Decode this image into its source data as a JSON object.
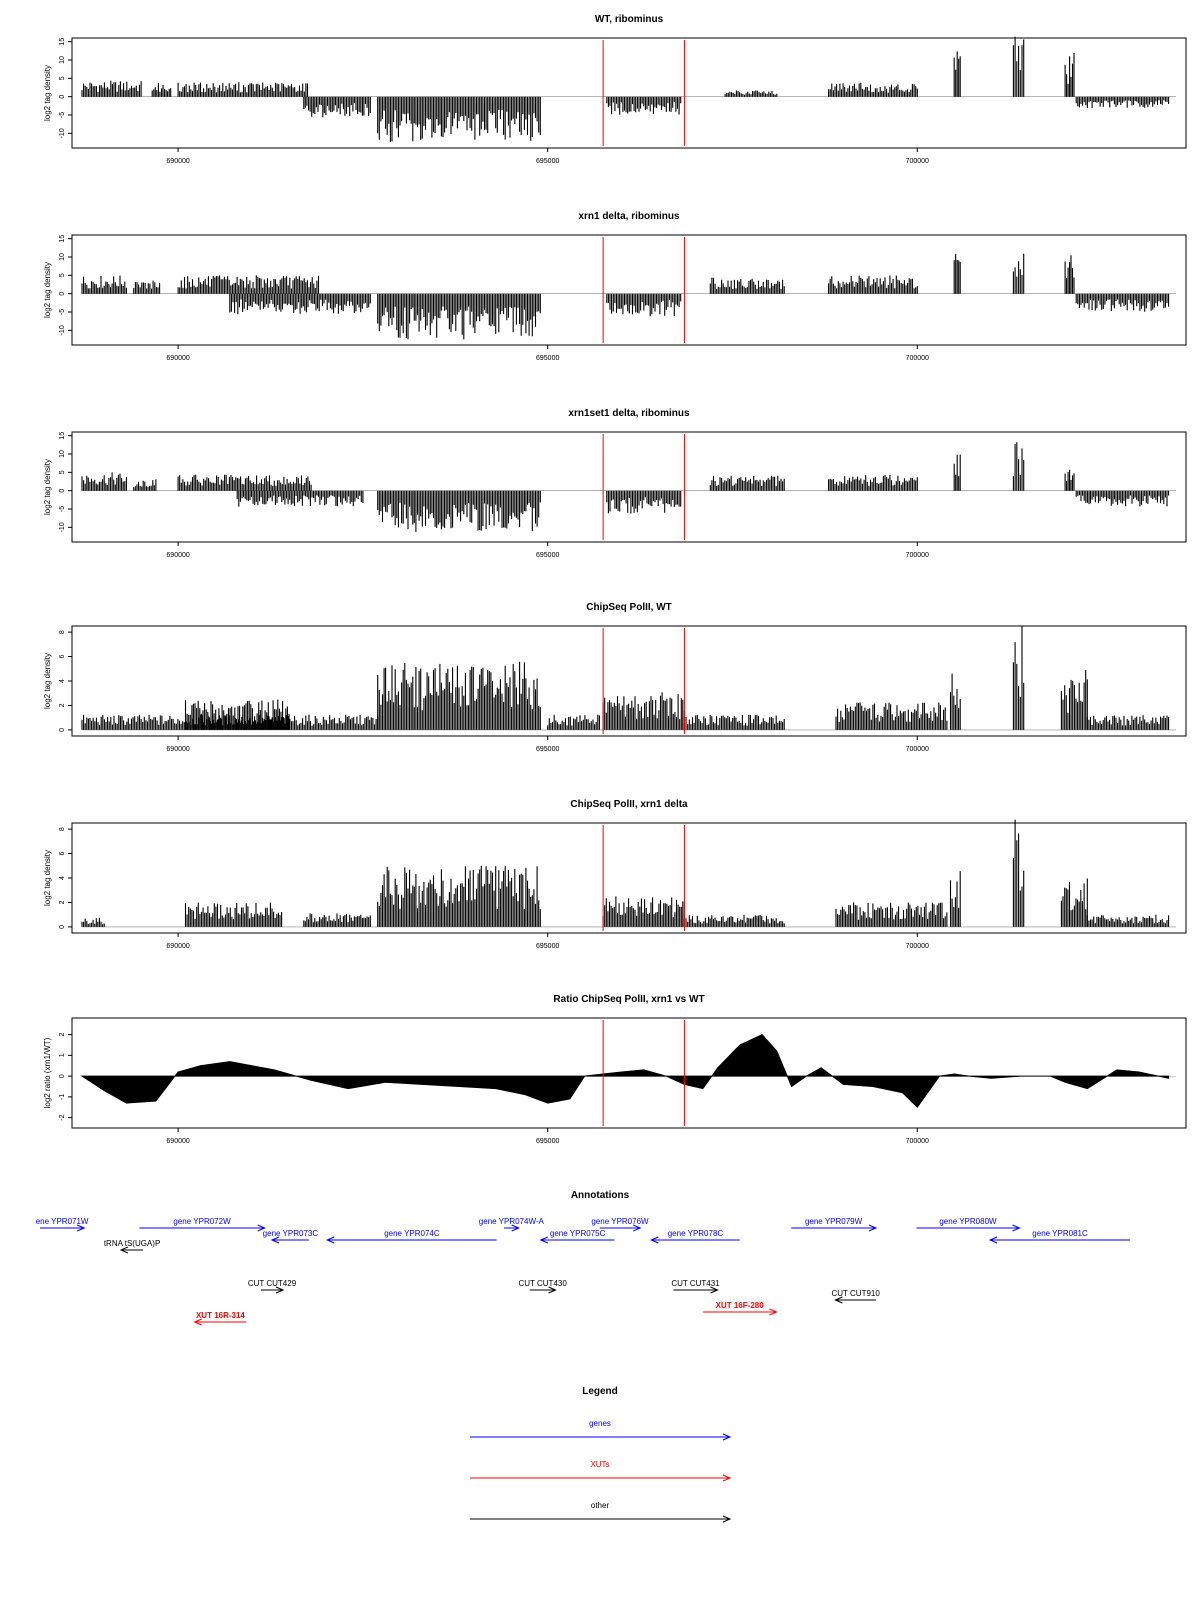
{
  "colors": {
    "gene": "#0000ff",
    "xut": "#ff0000",
    "other": "#000000",
    "marker": "#ff0000"
  },
  "chart_data": [
    {
      "type": "bar",
      "title": "WT, ribominus",
      "ylabel": "log2 tag density",
      "xlim": [
        688700,
        703500
      ],
      "ylim": [
        -14,
        16
      ],
      "yticks": [
        "-10",
        "-5",
        "0",
        "5",
        "10",
        "15"
      ],
      "xticks": [
        "690000",
        "695000",
        "700000"
      ],
      "markers": [
        695750,
        696850
      ],
      "segments": [
        {
          "from": 688700,
          "to": 689500,
          "level": 3.5
        },
        {
          "from": 689650,
          "to": 689900,
          "level": 3
        },
        {
          "from": 690000,
          "to": 691750,
          "level": 3.2
        },
        {
          "from": 691700,
          "to": 692600,
          "level": -4.5
        },
        {
          "from": 692700,
          "to": 694900,
          "level": -10
        },
        {
          "from": 695800,
          "to": 696800,
          "level": -4
        },
        {
          "from": 697400,
          "to": 698100,
          "level": 1.5
        },
        {
          "from": 698800,
          "to": 700000,
          "level": 3
        },
        {
          "from": 700500,
          "to": 700580,
          "level": 10.5
        },
        {
          "from": 701300,
          "to": 701440,
          "level": 13.5
        },
        {
          "from": 702000,
          "to": 702120,
          "level": 10
        },
        {
          "from": 702150,
          "to": 703400,
          "level": -2.5
        }
      ]
    },
    {
      "type": "bar",
      "title": "xrn1 delta, ribominus",
      "ylabel": "log2 tag density",
      "xlim": [
        688700,
        703500
      ],
      "ylim": [
        -14,
        16
      ],
      "yticks": [
        "-10",
        "-5",
        "0",
        "5",
        "10",
        "15"
      ],
      "xticks": [
        "690000",
        "695000",
        "700000"
      ],
      "markers": [
        695750,
        696850
      ],
      "segments": [
        {
          "from": 688700,
          "to": 689300,
          "level": 4
        },
        {
          "from": 689400,
          "to": 689750,
          "level": 3
        },
        {
          "from": 690000,
          "to": 691900,
          "level": 4
        },
        {
          "from": 690700,
          "to": 692600,
          "level": -4.5
        },
        {
          "from": 692700,
          "to": 694900,
          "level": -10
        },
        {
          "from": 695800,
          "to": 696800,
          "level": -5
        },
        {
          "from": 697200,
          "to": 698200,
          "level": 3.5
        },
        {
          "from": 698800,
          "to": 700000,
          "level": 4
        },
        {
          "from": 700500,
          "to": 700580,
          "level": 9
        },
        {
          "from": 701300,
          "to": 701440,
          "level": 11.5
        },
        {
          "from": 702000,
          "to": 702120,
          "level": 10.5
        },
        {
          "from": 702150,
          "to": 703400,
          "level": -4
        }
      ]
    },
    {
      "type": "bar",
      "title": "xrn1set1 delta, ribominus",
      "ylabel": "log2 tag density",
      "xlim": [
        688700,
        703500
      ],
      "ylim": [
        -14,
        16
      ],
      "yticks": [
        "-10",
        "-5",
        "0",
        "5",
        "10",
        "15"
      ],
      "xticks": [
        "690000",
        "695000",
        "700000"
      ],
      "markers": [
        695750,
        696850
      ],
      "segments": [
        {
          "from": 688700,
          "to": 689300,
          "level": 4
        },
        {
          "from": 689400,
          "to": 689700,
          "level": 2.5
        },
        {
          "from": 690000,
          "to": 691800,
          "level": 3.5
        },
        {
          "from": 690800,
          "to": 692500,
          "level": -3.5
        },
        {
          "from": 692700,
          "to": 694900,
          "level": -9
        },
        {
          "from": 695800,
          "to": 696800,
          "level": -5
        },
        {
          "from": 697200,
          "to": 698200,
          "level": 3.5
        },
        {
          "from": 698800,
          "to": 700000,
          "level": 3.5
        },
        {
          "from": 700500,
          "to": 700580,
          "level": 8
        },
        {
          "from": 701300,
          "to": 701440,
          "level": 11
        },
        {
          "from": 702000,
          "to": 702120,
          "level": 6
        },
        {
          "from": 702150,
          "to": 703400,
          "level": -3.5
        }
      ]
    },
    {
      "type": "bar",
      "title": "ChipSeq PolII, WT",
      "ylabel": "log2 tag density",
      "xlim": [
        688700,
        703500
      ],
      "ylim": [
        -0.5,
        8.5
      ],
      "yticks": [
        "0",
        "2",
        "4",
        "6",
        "8"
      ],
      "xticks": [
        "690000",
        "695000",
        "700000"
      ],
      "markers": [
        695750,
        696850
      ],
      "segments": [
        {
          "from": 688700,
          "to": 692700,
          "level": 1
        },
        {
          "from": 690100,
          "to": 691500,
          "level": 2
        },
        {
          "from": 692700,
          "to": 694900,
          "level": 4.5
        },
        {
          "from": 695000,
          "to": 695700,
          "level": 1
        },
        {
          "from": 695750,
          "to": 696850,
          "level": 2.5
        },
        {
          "from": 696850,
          "to": 698200,
          "level": 1
        },
        {
          "from": 698900,
          "to": 700400,
          "level": 1.8
        },
        {
          "from": 700450,
          "to": 700580,
          "level": 4.5
        },
        {
          "from": 701300,
          "to": 701440,
          "level": 7.7
        },
        {
          "from": 701950,
          "to": 702300,
          "level": 4
        },
        {
          "from": 702300,
          "to": 703400,
          "level": 1
        }
      ]
    },
    {
      "type": "bar",
      "title": "ChipSeq PolII, xrn1 delta",
      "ylabel": "log2 tag density",
      "xlim": [
        688700,
        703500
      ],
      "ylim": [
        -0.5,
        8.5
      ],
      "yticks": [
        "0",
        "2",
        "4",
        "6",
        "8"
      ],
      "xticks": [
        "690000",
        "695000",
        "700000"
      ],
      "markers": [
        695750,
        696850
      ],
      "segments": [
        {
          "from": 688700,
          "to": 689000,
          "level": 0.6
        },
        {
          "from": 690100,
          "to": 691400,
          "level": 1.6
        },
        {
          "from": 691700,
          "to": 692600,
          "level": 0.9
        },
        {
          "from": 692700,
          "to": 694900,
          "level": 4
        },
        {
          "from": 695750,
          "to": 696850,
          "level": 2
        },
        {
          "from": 696850,
          "to": 698200,
          "level": 0.8
        },
        {
          "from": 698900,
          "to": 700400,
          "level": 1.6
        },
        {
          "from": 700450,
          "to": 700580,
          "level": 4.2
        },
        {
          "from": 701300,
          "to": 701440,
          "level": 7.5
        },
        {
          "from": 701950,
          "to": 702300,
          "level": 3.5
        },
        {
          "from": 702300,
          "to": 703400,
          "level": 0.8
        }
      ]
    },
    {
      "type": "area",
      "title": "Ratio ChipSeq PolII, xrn1 vs WT",
      "ylabel": "log2 ratio (xrn1/WT)",
      "xlim": [
        688700,
        703500
      ],
      "ylim": [
        -2.5,
        2.8
      ],
      "yticks": [
        "-2",
        "-1",
        "0",
        "1",
        "2"
      ],
      "xticks": [
        "690000",
        "695000",
        "700000"
      ],
      "markers": [
        695750,
        696850
      ],
      "x": [
        688700,
        689000,
        689300,
        689700,
        690000,
        690300,
        690700,
        691000,
        691300,
        691800,
        692300,
        692800,
        693300,
        693800,
        694300,
        694700,
        695000,
        695300,
        695500,
        695750,
        696000,
        696300,
        696600,
        696850,
        697100,
        697300,
        697600,
        697900,
        698100,
        698300,
        698500,
        698700,
        699000,
        699400,
        699800,
        700000,
        700300,
        700500,
        700700,
        701000,
        701400,
        701800,
        702000,
        702300,
        702700,
        703000,
        703400
      ],
      "y": [
        0,
        -0.7,
        -1.3,
        -1.2,
        0.2,
        0.5,
        0.7,
        0.5,
        0.3,
        -0.2,
        -0.6,
        -0.3,
        -0.4,
        -0.5,
        -0.6,
        -0.9,
        -1.3,
        -1.1,
        0,
        0.1,
        0.2,
        0.3,
        0,
        -0.4,
        -0.6,
        0.4,
        1.5,
        2,
        1.2,
        -0.5,
        0,
        0.4,
        -0.4,
        -0.5,
        -0.8,
        -1.5,
        0,
        0.1,
        0,
        -0.1,
        0,
        0,
        -0.3,
        -0.6,
        0.3,
        0.2,
        -0.1
      ]
    }
  ],
  "annotations": {
    "title": "Annotations",
    "xlim": [
      688700,
      703500
    ],
    "features": [
      {
        "label": "ene YPR071W",
        "kind": "gene",
        "from": 688700,
        "to": 689300,
        "row": 0
      },
      {
        "label": "gene YPR072W",
        "kind": "gene",
        "from": 690050,
        "to": 691750,
        "row": 0
      },
      {
        "label": "gene YPR073C",
        "kind": "gene",
        "from": 692350,
        "to": 691850,
        "row": 1
      },
      {
        "label": "gene YPR074C",
        "kind": "gene",
        "from": 694900,
        "to": 692600,
        "row": 1
      },
      {
        "label": "gene YPR074W-A",
        "kind": "gene",
        "from": 695000,
        "to": 695200,
        "row": 0
      },
      {
        "label": "gene YPR075C",
        "kind": "gene",
        "from": 696500,
        "to": 695500,
        "row": 1
      },
      {
        "label": "gene YPR076W",
        "kind": "gene",
        "from": 696300,
        "to": 696850,
        "row": 0
      },
      {
        "label": "gene YPR078C",
        "kind": "gene",
        "from": 698200,
        "to": 697000,
        "row": 1
      },
      {
        "label": "gene YPR079W",
        "kind": "gene",
        "from": 698900,
        "to": 700050,
        "row": 0
      },
      {
        "label": "gene YPR080W",
        "kind": "gene",
        "from": 700600,
        "to": 702000,
        "row": 0
      },
      {
        "label": "gene YPR081C",
        "kind": "gene",
        "from": 703500,
        "to": 701600,
        "row": 1
      },
      {
        "label": "tRNA tS(UGA)P",
        "kind": "other",
        "from": 690100,
        "to": 689800,
        "row": 2
      },
      {
        "label": "CUT CUT429",
        "kind": "other",
        "from": 691700,
        "to": 692000,
        "row": 3
      },
      {
        "label": "CUT CUT430",
        "kind": "other",
        "from": 695350,
        "to": 695700,
        "row": 3
      },
      {
        "label": "CUT CUT431",
        "kind": "other",
        "from": 697300,
        "to": 697900,
        "row": 3
      },
      {
        "label": "CUT CUT910",
        "kind": "other",
        "from": 700050,
        "to": 699500,
        "row": 4
      },
      {
        "label": "XUT 16R-314",
        "kind": "xut",
        "from": 691500,
        "to": 690800,
        "row": 5
      },
      {
        "label": "XUT 16F-280",
        "kind": "xut",
        "from": 697700,
        "to": 698700,
        "row": 6
      }
    ]
  },
  "legend": {
    "title": "Legend",
    "items": [
      {
        "label": "genes",
        "kind": "gene"
      },
      {
        "label": "XUTs",
        "kind": "xut"
      },
      {
        "label": "other",
        "kind": "other"
      }
    ]
  }
}
